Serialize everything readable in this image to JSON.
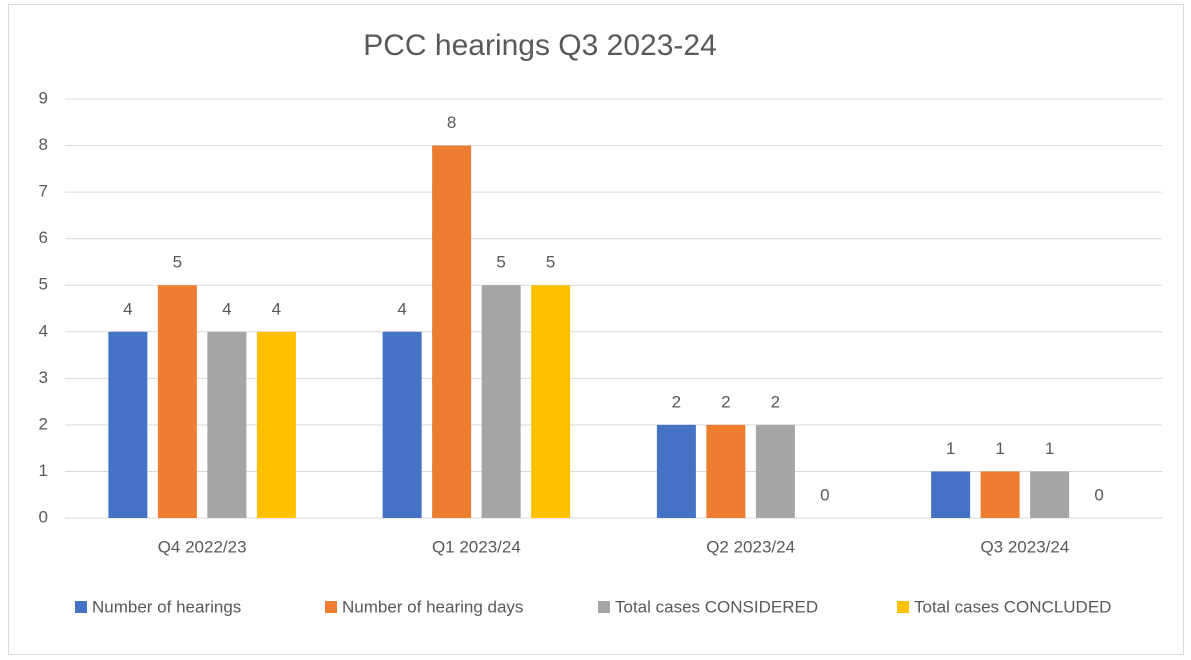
{
  "chart_data": {
    "type": "bar",
    "title": "PCC hearings Q3 2023-24",
    "categories": [
      "Q4 2022/23",
      "Q1 2023/24",
      "Q2 2023/24",
      "Q3 2023/24"
    ],
    "series": [
      {
        "name": "Number of hearings",
        "color": "#4472c4",
        "values": [
          4,
          4,
          2,
          1
        ]
      },
      {
        "name": "Number of hearing days",
        "color": "#ed7d31",
        "values": [
          5,
          8,
          2,
          1
        ]
      },
      {
        "name": "Total cases CONSIDERED",
        "color": "#a5a5a5",
        "values": [
          4,
          5,
          2,
          1
        ]
      },
      {
        "name": "Total cases CONCLUDED",
        "color": "#ffc000",
        "values": [
          4,
          5,
          0,
          0
        ]
      }
    ],
    "ylim": [
      0,
      9
    ],
    "yticks": [
      0,
      1,
      2,
      3,
      4,
      5,
      6,
      7,
      8,
      9
    ],
    "grid": true,
    "legend": "bottom"
  }
}
